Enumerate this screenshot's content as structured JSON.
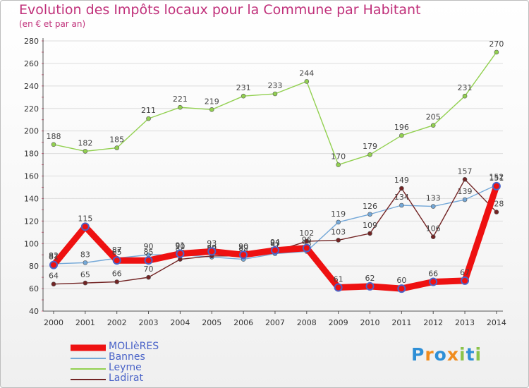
{
  "header": {
    "title": "Evolution des Impôts locaux pour la Commune par Habitant",
    "subtitle": "(en € et par an)"
  },
  "brand": {
    "letters": [
      "P",
      "r",
      "o",
      "x",
      "i",
      "t",
      "i"
    ],
    "colors": [
      "#2e8fd6",
      "#f08c1e",
      "#2e8fd6",
      "#f08c1e",
      "#8bc34a",
      "#2e8fd6",
      "#8bc34a"
    ]
  },
  "chart_data": {
    "type": "line",
    "title": "Evolution des Impôts locaux pour la Commune par Habitant",
    "subtitle": "(en € et par an)",
    "xlabel": "",
    "ylabel": "",
    "x": [
      "2000",
      "2001",
      "2002",
      "2003",
      "2004",
      "2005",
      "2006",
      "2007",
      "2008",
      "2009",
      "2010",
      "2011",
      "2012",
      "2013",
      "2014"
    ],
    "ylim": [
      40,
      280
    ],
    "yticks": [
      40,
      60,
      80,
      100,
      120,
      140,
      160,
      180,
      200,
      220,
      240,
      260,
      280
    ],
    "grid": true,
    "legend_position": "bottom-left",
    "series": [
      {
        "name": "Leyme",
        "color": "#92d050",
        "values": [
          188,
          182,
          185,
          211,
          221,
          219,
          231,
          233,
          244,
          170,
          179,
          196,
          205,
          231,
          270
        ]
      },
      {
        "name": "Bannes",
        "color": "#74a8d8",
        "values": [
          82,
          83,
          87,
          90,
          90,
          88,
          86,
          91,
          93,
          119,
          126,
          134,
          133,
          139,
          152
        ]
      },
      {
        "name": "Ladirat",
        "color": "#722424",
        "values": [
          64,
          65,
          66,
          70,
          86,
          89,
          89,
          93,
          102,
          103,
          109,
          149,
          106,
          157,
          128
        ]
      },
      {
        "name": "MOLIèRES",
        "color": "#ee1111",
        "values": [
          81,
          115,
          85,
          85,
          91,
          93,
          90,
          94,
          96,
          61,
          62,
          60,
          66,
          67,
          151
        ]
      }
    ]
  }
}
